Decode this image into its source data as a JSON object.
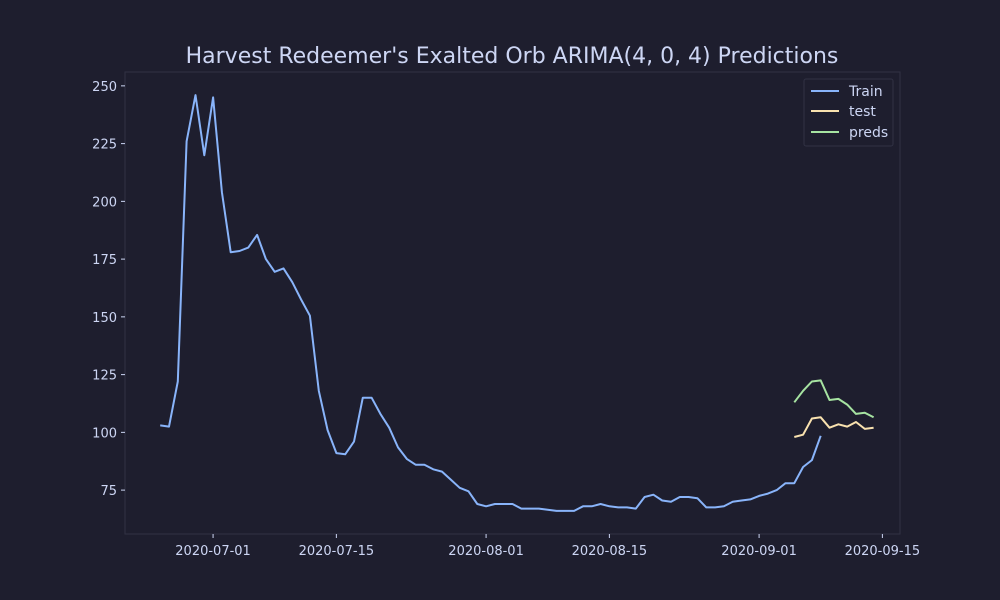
{
  "chart_data": {
    "type": "line",
    "title": "Harvest Redeemer's Exalted Orb ARIMA(4, 0, 4) Predictions",
    "xlabel": "",
    "ylabel": "",
    "xlim": [
      "2020-06-21",
      "2020-09-17"
    ],
    "ylim": [
      56,
      256
    ],
    "x_ticks": [
      "2020-07-01",
      "2020-07-15",
      "2020-08-01",
      "2020-08-15",
      "2020-09-01",
      "2020-09-15"
    ],
    "y_ticks": [
      75,
      100,
      125,
      150,
      175,
      200,
      225,
      250
    ],
    "grid": false,
    "legend_position": "top-right",
    "colors": {
      "background": "#1e1e2e",
      "plot_border": "#313244",
      "text": "#cdd6f4",
      "Train": "#89b4fa",
      "test": "#f9e2af",
      "preds": "#a6e3a1"
    },
    "series": [
      {
        "name": "Train",
        "start_date": "2020-06-25",
        "values": [
          103,
          102.5,
          122,
          226,
          246,
          220,
          245,
          204,
          178,
          178.5,
          180,
          185.5,
          175,
          169.5,
          171,
          165,
          157.5,
          150.5,
          118,
          101,
          91,
          90.5,
          96,
          115,
          115,
          108,
          102,
          93.5,
          88.5,
          86,
          86,
          84,
          83,
          79.5,
          76,
          74.5,
          69,
          68,
          69,
          69,
          69,
          67,
          67,
          67,
          66.5,
          66,
          66,
          66,
          68,
          68,
          69,
          68,
          67.5,
          67.5,
          67,
          72,
          73,
          70.5,
          70,
          72,
          72,
          71.5,
          67.5,
          67.5,
          68,
          70,
          70.5,
          71,
          72.5,
          73.5,
          75,
          78,
          78,
          85,
          88,
          98.5
        ]
      },
      {
        "name": "test",
        "start_date": "2020-09-05",
        "values": [
          98,
          99,
          106,
          106.5,
          102,
          103.5,
          102.5,
          104.5,
          101.5,
          102
        ]
      },
      {
        "name": "preds",
        "start_date": "2020-09-05",
        "values": [
          113,
          118,
          122,
          122.5,
          114,
          114.5,
          112,
          108,
          108.5,
          106.5
        ]
      }
    ]
  }
}
